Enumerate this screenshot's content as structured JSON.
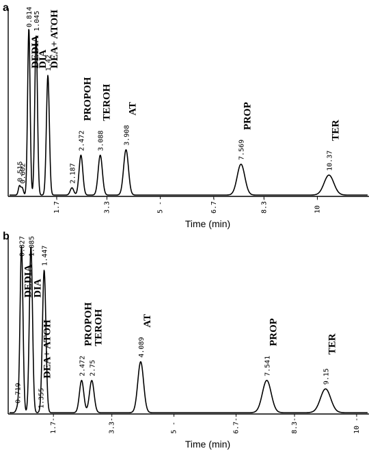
{
  "chart_data": [
    {
      "type": "line",
      "panel": "a",
      "xlabel": "Time (min)",
      "ticks": [
        "1.7-",
        "3.3-",
        "5 -",
        "6.7-",
        "8.3-",
        "10 -"
      ],
      "tick_values": [
        1.7,
        3.3,
        5.0,
        6.7,
        8.3,
        10.0
      ],
      "xlim": [
        0.2,
        11.6
      ],
      "peaks": [
        {
          "rt": 0.515,
          "rt_label": "0.515",
          "height": 0.05
        },
        {
          "rt": 0.602,
          "rt_label": "0.602",
          "height": 0.04
        },
        {
          "rt": 0.814,
          "rt_label": "0.814",
          "height": 0.92,
          "name": "DEDIA"
        },
        {
          "rt": 1.045,
          "rt_label": "1.045",
          "height": 0.88,
          "name": "DIA"
        },
        {
          "rt": 1.42,
          "rt_label": "1.42",
          "height": 0.66,
          "name": "DEA+ ATOH"
        },
        {
          "rt": 2.187,
          "rt_label": "2.187",
          "height": 0.04
        },
        {
          "rt": 2.472,
          "rt_label": "2.472",
          "height": 0.22,
          "name": "PROPOH"
        },
        {
          "rt": 3.088,
          "rt_label": "3.088",
          "height": 0.22,
          "name": "TEROH"
        },
        {
          "rt": 3.908,
          "rt_label": "3.908",
          "height": 0.25,
          "name": "AT"
        },
        {
          "rt": 7.569,
          "rt_label": "7.569",
          "height": 0.17,
          "name": "PROP"
        },
        {
          "rt": 10.37,
          "rt_label": "10.37",
          "height": 0.11,
          "name": "TER"
        }
      ]
    },
    {
      "type": "line",
      "panel": "b",
      "xlabel": "Time (min)",
      "ticks": [
        "1.7-",
        "3.3-",
        "5 -",
        "6.7-",
        "8.3-",
        "10 -"
      ],
      "tick_values": [
        1.7,
        3.3,
        5.0,
        6.7,
        8.3,
        10.0
      ],
      "xlim": [
        0.5,
        10.3
      ],
      "peaks": [
        {
          "rt": 0.719,
          "rt_label": "0.719",
          "height": 0.03
        },
        {
          "rt": 0.827,
          "rt_label": "0.827",
          "height": 0.98,
          "name": "DEDIA"
        },
        {
          "rt": 1.085,
          "rt_label": "1.085",
          "height": 0.98,
          "name": "DIA"
        },
        {
          "rt": 1.447,
          "rt_label": "1.447",
          "height": 0.84
        },
        {
          "rt": 1.355,
          "rt_label": "1.355",
          "height": 0.0,
          "name": "DEA+ ATOH"
        },
        {
          "rt": 2.472,
          "rt_label": "2.472",
          "height": 0.19,
          "name": "PROPOH"
        },
        {
          "rt": 2.75,
          "rt_label": "2.75",
          "height": 0.19,
          "name": "TEROH"
        },
        {
          "rt": 4.089,
          "rt_label": "4.089",
          "height": 0.3,
          "name": "AT"
        },
        {
          "rt": 7.541,
          "rt_label": "7.541",
          "height": 0.19,
          "name": "PROP"
        },
        {
          "rt": 9.15,
          "rt_label": "9.15",
          "height": 0.14,
          "name": "TER"
        }
      ]
    }
  ]
}
